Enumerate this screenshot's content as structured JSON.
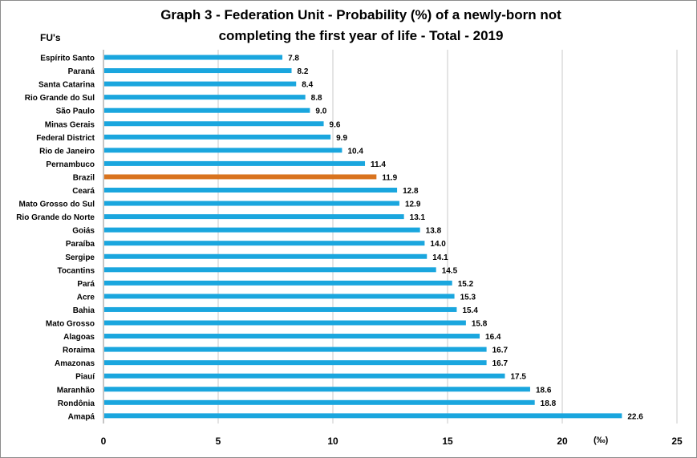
{
  "title_line1": "Graph 3 - Federation Unit -  Probability (%) of a newly-born not",
  "title_line2": "completing the first year of life - Total - 2019",
  "y_axis_label": "FU's",
  "x_unit_label": "(‰)",
  "colors": {
    "bar": "#1aa6de",
    "highlight": "#d9731e",
    "grid": "#c8c8c8"
  },
  "chart_data": {
    "type": "bar",
    "orientation": "horizontal",
    "title": "Graph 3 - Federation Unit -  Probability (%) of a newly-born not completing the first year of life - Total - 2019",
    "ylabel": "FU's",
    "xlabel": "(‰)",
    "xlim": [
      0,
      25
    ],
    "xticks": [
      0,
      5,
      10,
      15,
      20,
      25
    ],
    "grid": "vertical",
    "highlight": "Brazil",
    "categories": [
      "Espírito Santo",
      "Paraná",
      "Santa Catarina",
      "Rio Grande do Sul",
      "São Paulo",
      "Minas Gerais",
      "Federal District",
      "Rio de Janeiro",
      "Pernambuco",
      "Brazil",
      "Ceará",
      "Mato Grosso do Sul",
      "Rio Grande do Norte",
      "Goiás",
      "Paraíba",
      "Sergipe",
      "Tocantins",
      "Pará",
      "Acre",
      "Bahia",
      "Mato Grosso",
      "Alagoas",
      "Roraima",
      "Amazonas",
      "Piauí",
      "Maranhão",
      "Rondônia",
      "Amapá"
    ],
    "values": [
      7.8,
      8.2,
      8.4,
      8.8,
      9.0,
      9.6,
      9.9,
      10.4,
      11.4,
      11.9,
      12.8,
      12.9,
      13.1,
      13.8,
      14.0,
      14.1,
      14.5,
      15.2,
      15.3,
      15.4,
      15.8,
      16.4,
      16.7,
      16.7,
      17.5,
      18.6,
      18.8,
      22.6
    ]
  }
}
